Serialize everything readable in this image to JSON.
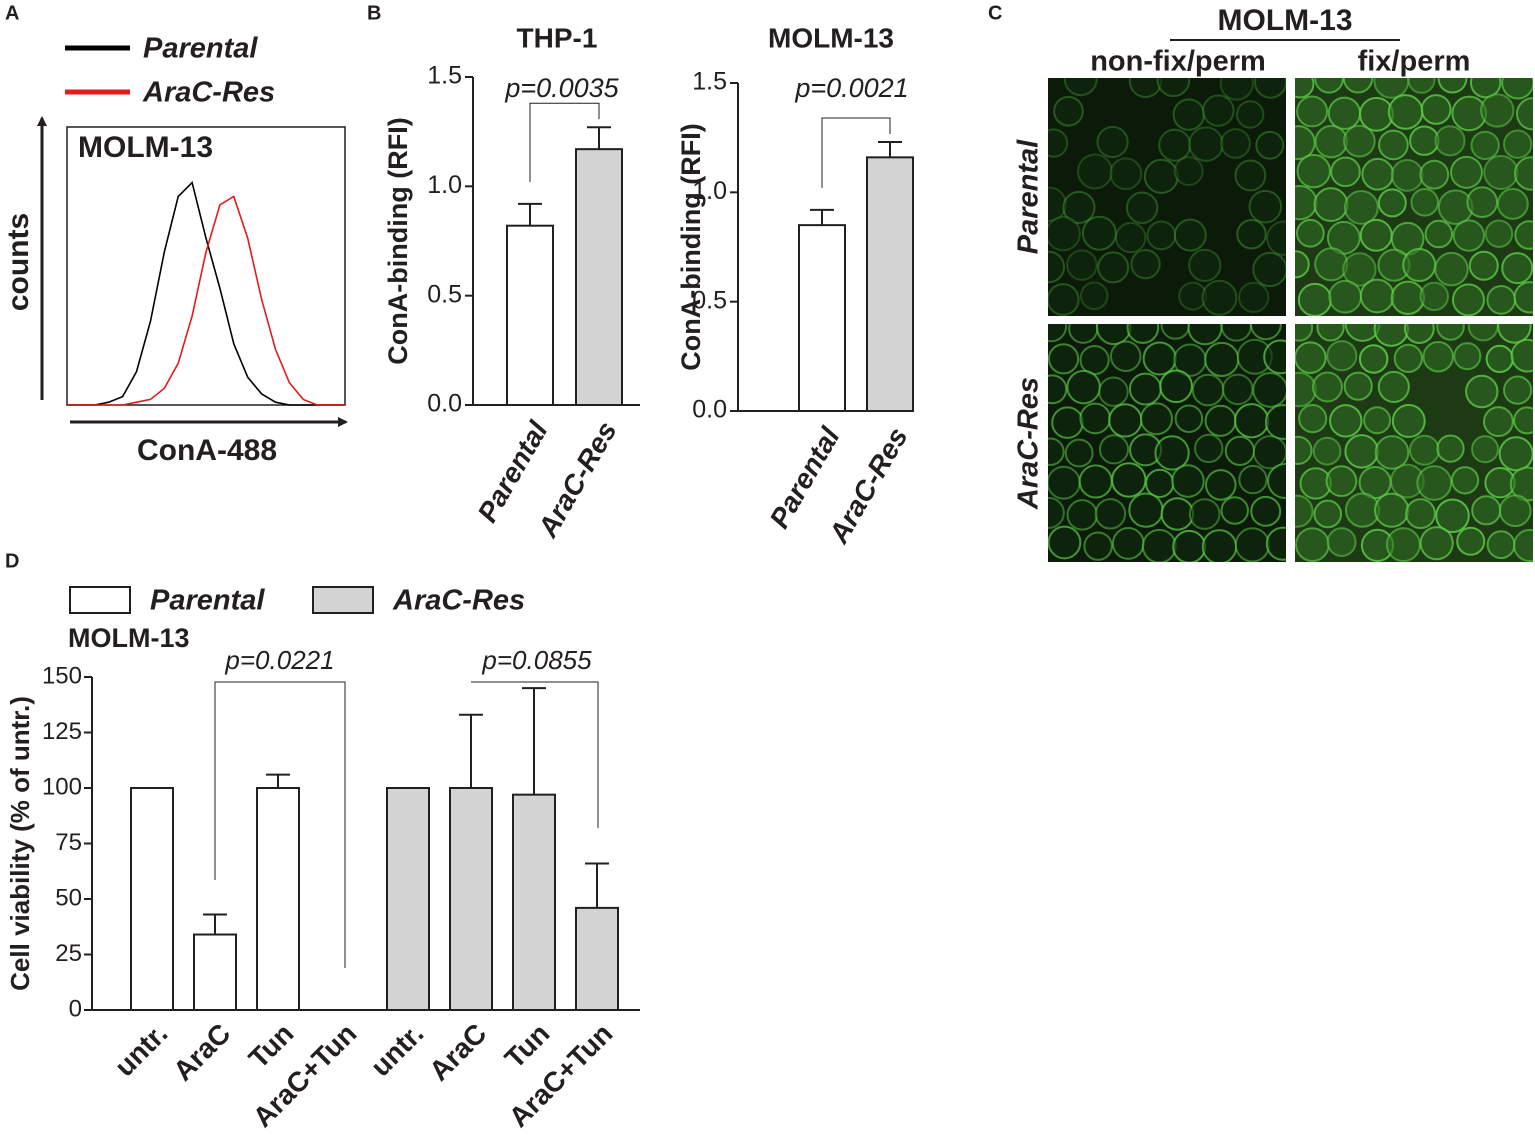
{
  "panel_labels": [
    "A",
    "B",
    "C",
    "D"
  ],
  "chart_data": [
    {
      "type": "line",
      "title": "MOLM-13",
      "x_label": "ConA-488",
      "y_label": "counts",
      "xlim": [
        0,
        100
      ],
      "ylim": [
        0,
        100
      ],
      "x": [
        0,
        5,
        10,
        15,
        20,
        25,
        30,
        35,
        40,
        45,
        50,
        55,
        60,
        65,
        70,
        75,
        80,
        85,
        90,
        95,
        100
      ],
      "series": [
        {
          "name": "Parental",
          "color": "#000000",
          "values": [
            0,
            0,
            0,
            1,
            3,
            12,
            30,
            55,
            75,
            80,
            60,
            42,
            22,
            10,
            4,
            1,
            0,
            0,
            0,
            0,
            0
          ]
        },
        {
          "name": "AraC-Res",
          "color": "#e41a1c",
          "values": [
            0,
            0,
            0,
            0,
            0,
            1,
            2,
            6,
            15,
            32,
            55,
            72,
            75,
            60,
            38,
            20,
            8,
            2,
            0,
            0,
            0
          ]
        }
      ]
    },
    {
      "type": "bar",
      "title": "THP-1",
      "y_label": "ConA-binding (RFI)",
      "annotation": "p=0.0035",
      "categories": [
        "Parental",
        "AraC-Res"
      ],
      "values": [
        0.82,
        1.17
      ],
      "errors": [
        0.1,
        0.1
      ],
      "colors": [
        "#ffffff",
        "#d3d3d3"
      ],
      "ylim": [
        0,
        1.5
      ],
      "yticks": [
        {
          "value": 0,
          "label": "0.0"
        },
        0.5,
        {
          "value": 1,
          "label": "1.0"
        },
        1.5
      ]
    },
    {
      "type": "bar",
      "title": "MOLM-13",
      "y_label": "ConA-binding (RFI)",
      "annotation": "p=0.0021",
      "categories": [
        "Parental",
        "AraC-Res"
      ],
      "values": [
        0.85,
        1.16
      ],
      "errors": [
        0.07,
        0.07
      ],
      "colors": [
        "#ffffff",
        "#d3d3d3"
      ],
      "ylim": [
        0,
        1.5
      ],
      "yticks": [
        {
          "value": 0,
          "label": "0.0"
        },
        0.5,
        {
          "value": 1,
          "label": "1.0"
        },
        1.5
      ]
    },
    {
      "type": "bar",
      "title": "MOLM-13",
      "y_label": "Cell viability (% of untr.)",
      "annotations": [
        "p=0.0221",
        "p=0.0855"
      ],
      "categories": [
        "untr.",
        "AraC",
        "Tun",
        "AraC+Tun"
      ],
      "series": [
        {
          "name": "Parental",
          "color": "#ffffff",
          "values": [
            100,
            34,
            100,
            0
          ],
          "errors": [
            null,
            9,
            6,
            null
          ]
        },
        {
          "name": "AraC-Res",
          "color": "#d3d3d3",
          "values": [
            100,
            100,
            97,
            46
          ],
          "errors": [
            null,
            33,
            48,
            20
          ]
        }
      ],
      "ylim": [
        0,
        150
      ],
      "yticks": [
        0,
        25,
        50,
        75,
        100,
        125,
        150
      ]
    }
  ],
  "micrographs": {
    "title": "MOLM-13",
    "columns": [
      "non-fix/perm",
      "fix/perm"
    ],
    "rows": [
      "Parental",
      "AraC-Res"
    ]
  }
}
